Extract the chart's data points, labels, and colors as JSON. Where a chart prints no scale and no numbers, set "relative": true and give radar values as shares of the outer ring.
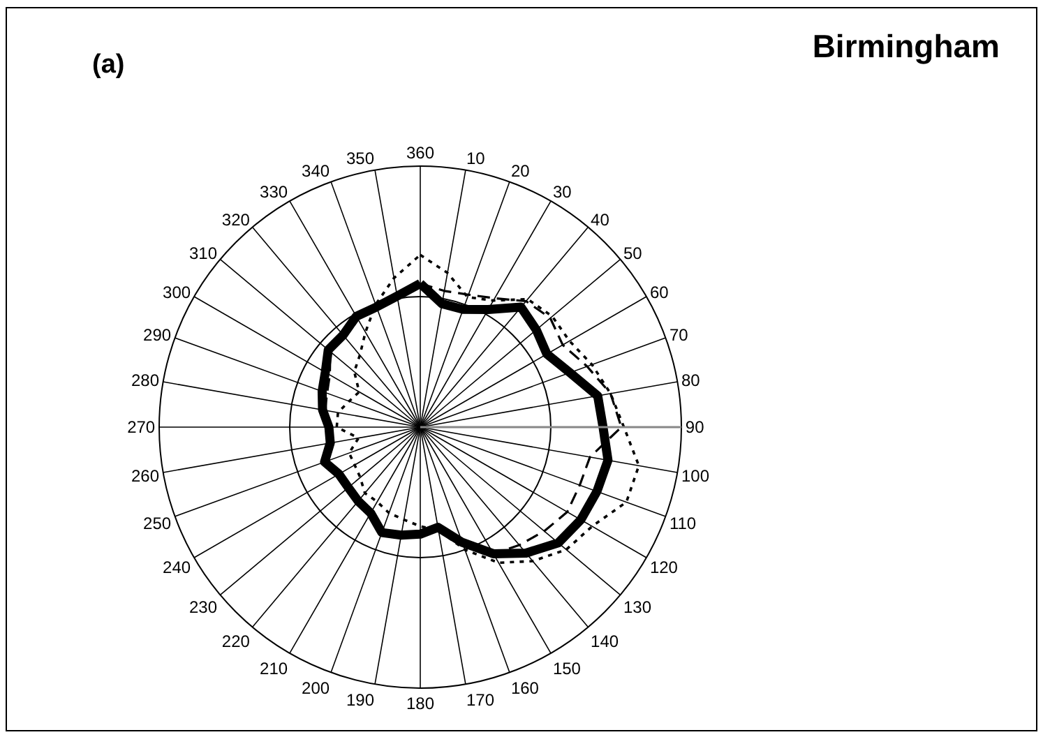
{
  "chart_data": {
    "type": "radar",
    "title": "Birmingham",
    "annotations": [
      "(a)"
    ],
    "relative": true,
    "grid": true,
    "categories": [
      "360",
      "10",
      "20",
      "30",
      "40",
      "50",
      "60",
      "70",
      "80",
      "90",
      "100",
      "110",
      "120",
      "130",
      "140",
      "150",
      "160",
      "170",
      "180",
      "190",
      "200",
      "210",
      "220",
      "230",
      "240",
      "250",
      "260",
      "270",
      "280",
      "290",
      "300",
      "310",
      "320",
      "330",
      "340",
      "350"
    ],
    "series": [
      {
        "color": "#000000",
        "line_style": "solid",
        "values": [
          0.55,
          0.48,
          0.48,
          0.52,
          0.6,
          0.58,
          0.56,
          0.61,
          0.69,
          0.7,
          0.73,
          0.72,
          0.71,
          0.69,
          0.63,
          0.56,
          0.47,
          0.39,
          0.41,
          0.42,
          0.43,
          0.38,
          0.37,
          0.36,
          0.36,
          0.39,
          0.35,
          0.35,
          0.38,
          0.4,
          0.42,
          0.46,
          0.46,
          0.49,
          0.49,
          0.51
        ]
      },
      {
        "color": "#000000",
        "line_style": "dashed",
        "values": [
          0.55,
          0.53,
          0.54,
          0.57,
          0.63,
          0.65,
          0.63,
          0.68,
          0.74,
          0.77,
          0.66,
          0.65,
          0.65,
          0.62,
          0.59,
          0.56,
          0.47,
          0.39,
          0.41,
          0.42,
          0.43,
          0.38,
          0.37,
          0.36,
          0.36,
          0.39,
          0.35,
          0.35,
          0.37,
          0.38,
          0.4,
          0.45,
          0.46,
          0.49,
          0.49,
          0.52
        ]
      },
      {
        "color": "#000000",
        "line_style": "dotted",
        "values": [
          0.66,
          0.6,
          0.53,
          0.56,
          0.64,
          0.66,
          0.66,
          0.7,
          0.74,
          0.78,
          0.85,
          0.84,
          0.76,
          0.73,
          0.67,
          0.6,
          0.5,
          0.4,
          0.38,
          0.36,
          0.35,
          0.33,
          0.33,
          0.3,
          0.29,
          0.29,
          0.24,
          0.32,
          0.32,
          0.29,
          0.27,
          0.33,
          0.36,
          0.42,
          0.5,
          0.58
        ]
      }
    ]
  }
}
